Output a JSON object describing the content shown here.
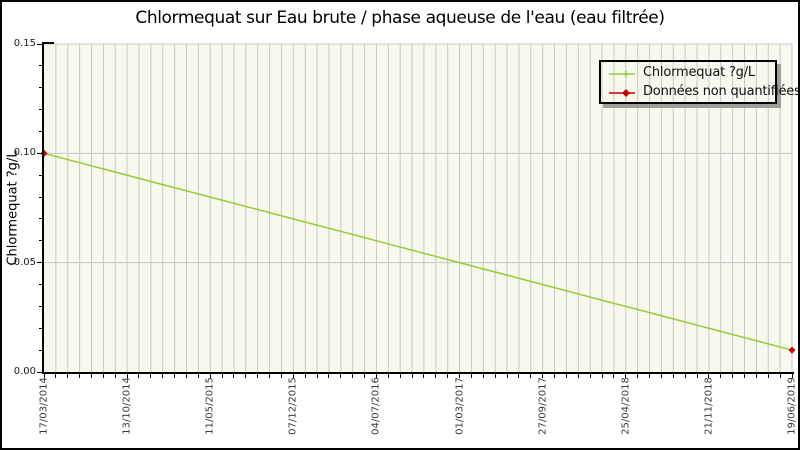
{
  "chart_data": {
    "type": "line",
    "title": "Chlormequat sur Eau brute / phase aqueuse de l'eau (eau filtrée)",
    "xlabel": "",
    "ylabel": "Chlormequat ?g/L",
    "ylim": [
      0,
      0.15
    ],
    "y_tick_values": [
      0.15,
      0.1,
      0.05,
      0.0
    ],
    "y_tick_labels": [
      "0.15",
      "0.10",
      "0.05",
      "0.00"
    ],
    "y_minor_step": 0.01,
    "x_tick_labels": [
      "17/03/2014",
      "13/10/2014",
      "11/05/2015",
      "07/12/2015",
      "04/07/2016",
      "01/03/2017",
      "27/09/2017",
      "25/04/2018",
      "21/11/2018",
      "19/06/2019"
    ],
    "x_total_intervals": 63,
    "x_minor_per_major": 7,
    "grid": "vertical minor gridlines on, horizontal major gridlines on",
    "legend_position": "top-right",
    "series": [
      {
        "name": "Chlormequat ?g/L",
        "points": [
          {
            "x_label": "17/03/2014",
            "x_index": 0,
            "value": 0.1,
            "quantified": false
          },
          {
            "x_label": "19/06/2019",
            "x_index": 63,
            "value": 0.01,
            "quantified": false
          }
        ]
      }
    ],
    "legend": {
      "entries": [
        {
          "label": "Chlormequat ?g/L",
          "marker": "line-with-plus",
          "color": "#99cc33"
        },
        {
          "label": "Données non quantifiées",
          "marker": "line-with-diamond",
          "color": "#cc0000"
        }
      ]
    },
    "colors": {
      "line_green": "#99cc33",
      "non_quantified_red": "#cc0000",
      "plot_background": "#f8f8ee",
      "grid": "#c8c8c8",
      "legend_shadow": "#9f9f97"
    }
  }
}
